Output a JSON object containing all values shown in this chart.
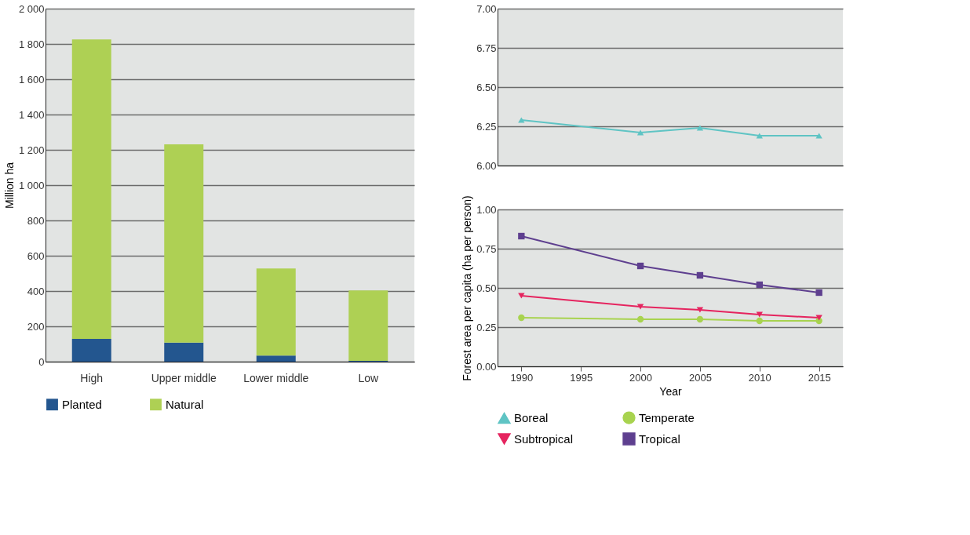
{
  "chart_data": [
    {
      "type": "bar",
      "stacked": true,
      "ylabel": "Million ha",
      "categories": [
        "High",
        "Upper middle",
        "Lower middle",
        "Low"
      ],
      "series": [
        {
          "name": "Planted",
          "color": "#23568f",
          "values": [
            129,
            108,
            35,
            5
          ]
        },
        {
          "name": "Natural",
          "color": "#aed054",
          "values": [
            1697,
            1123,
            493,
            398
          ]
        }
      ],
      "ylim": [
        0,
        2000
      ],
      "yticks": [
        0,
        200,
        400,
        600,
        800,
        {
          "value": 1000,
          "label": "1 000"
        },
        {
          "value": 1200,
          "label": "1 200"
        },
        {
          "value": 1400,
          "label": "1 400"
        },
        {
          "value": 1600,
          "label": "1 600"
        },
        {
          "value": 1800,
          "label": "1 800"
        },
        {
          "value": 2000,
          "label": "2 000"
        }
      ],
      "grid": "y",
      "legend": "bottom"
    },
    {
      "type": "line",
      "tick_labels": "y",
      "x": [
        1990,
        2000,
        2005,
        2010,
        2015
      ],
      "series": [
        {
          "name": "Boreal",
          "color": "#5fc4c4",
          "marker": "triangle",
          "values": [
            6.29,
            6.21,
            6.24,
            6.19,
            6.19
          ]
        }
      ],
      "xlim": [
        1988,
        2017
      ],
      "ylim": [
        6,
        7
      ],
      "yticks": [
        {
          "value": 6,
          "label": "6.00"
        },
        {
          "value": 6.25,
          "label": "6.25"
        },
        {
          "value": 6.5,
          "label": "6.50"
        },
        {
          "value": 6.75,
          "label": "6.75"
        },
        {
          "value": 7,
          "label": "7.00"
        }
      ],
      "grid": "y",
      "legend": "bottom"
    },
    {
      "type": "line",
      "xlabel": "Year",
      "ylabel": "Forest area per capita (ha per person)",
      "x": [
        1990,
        2000,
        2005,
        2010,
        2015
      ],
      "series": [
        {
          "name": "Temperate",
          "color": "#a8d34f",
          "marker": "circle",
          "values": [
            0.31,
            0.3,
            0.3,
            0.29,
            0.29
          ]
        },
        {
          "name": "Subtropical",
          "color": "#e5245f",
          "marker": "triangle-down",
          "values": [
            0.45,
            0.38,
            0.36,
            0.33,
            0.31
          ]
        },
        {
          "name": "Tropical",
          "color": "#5e3f8f",
          "marker": "square",
          "values": [
            0.83,
            0.64,
            0.58,
            0.52,
            0.47
          ]
        }
      ],
      "xlim": [
        1988,
        2017
      ],
      "xticks": [
        1990,
        1995,
        2000,
        2005,
        2010,
        2015
      ],
      "ylim": [
        0,
        1
      ],
      "yticks": [
        {
          "value": 0,
          "label": "0.00"
        },
        {
          "value": 0.25,
          "label": "0.25"
        },
        {
          "value": 0.5,
          "label": "0.50"
        },
        {
          "value": 0.75,
          "label": "0.75"
        },
        {
          "value": 1,
          "label": "1.00"
        }
      ],
      "grid": "y",
      "legend": "bottom"
    }
  ]
}
